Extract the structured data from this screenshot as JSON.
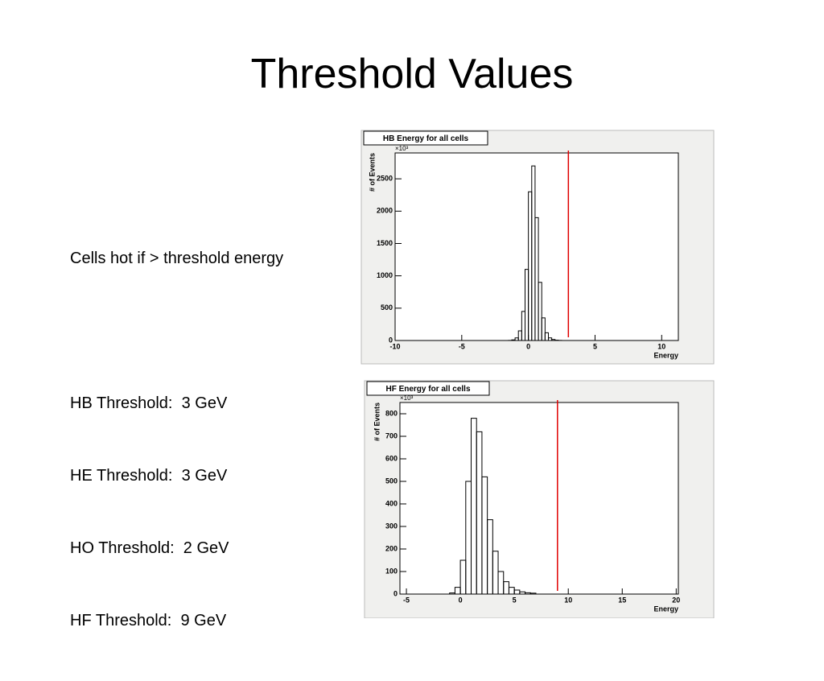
{
  "title": "Threshold Values",
  "text": [
    "Cells hot if > threshold energy",
    "HB Threshold:  3 GeV",
    "HE Threshold:  3 GeV",
    "HO Threshold:  2 GeV",
    "HF Threshold:  9 GeV"
  ],
  "chart_data": [
    {
      "type": "histogram",
      "title": "HB Energy for all cells",
      "xlabel": "Energy",
      "ylabel": "# of Events",
      "y_multiplier": "×10³",
      "bins": [
        -1.5,
        -1.25,
        -1,
        -0.75,
        -0.5,
        -0.25,
        0,
        0.25,
        0.5,
        0.75,
        1,
        1.25,
        1.5,
        1.75,
        2,
        2.25,
        2.5
      ],
      "values": [
        2,
        10,
        40,
        150,
        450,
        1100,
        2300,
        2700,
        1900,
        900,
        350,
        120,
        40,
        15,
        5,
        2
      ],
      "color": "#000000",
      "threshold": 3,
      "threshold_color": "#e00000",
      "xlim": [
        -10,
        11.25
      ],
      "xticks": [
        -10,
        -5,
        0,
        5,
        10
      ],
      "ylim": [
        0,
        2900
      ],
      "yticks": [
        0,
        500,
        1000,
        1500,
        2000,
        2500
      ]
    },
    {
      "type": "histogram",
      "title": "HF Energy for all cells",
      "xlabel": "Energy",
      "ylabel": "# of Events",
      "y_multiplier": "×10³",
      "bins": [
        -1,
        -0.5,
        0,
        0.5,
        1,
        1.5,
        2,
        2.5,
        3,
        3.5,
        4,
        4.5,
        5,
        5.5,
        6,
        6.5,
        7
      ],
      "values": [
        5,
        30,
        150,
        500,
        780,
        720,
        520,
        330,
        190,
        100,
        55,
        30,
        18,
        10,
        6,
        4
      ],
      "color": "#000000",
      "threshold": 9,
      "threshold_color": "#e00000",
      "xlim": [
        -5.6,
        20.2
      ],
      "xticks": [
        -5,
        0,
        5,
        10,
        15,
        20
      ],
      "ylim": [
        0,
        850
      ],
      "yticks": [
        0,
        100,
        200,
        300,
        400,
        500,
        600,
        700,
        800
      ]
    }
  ]
}
